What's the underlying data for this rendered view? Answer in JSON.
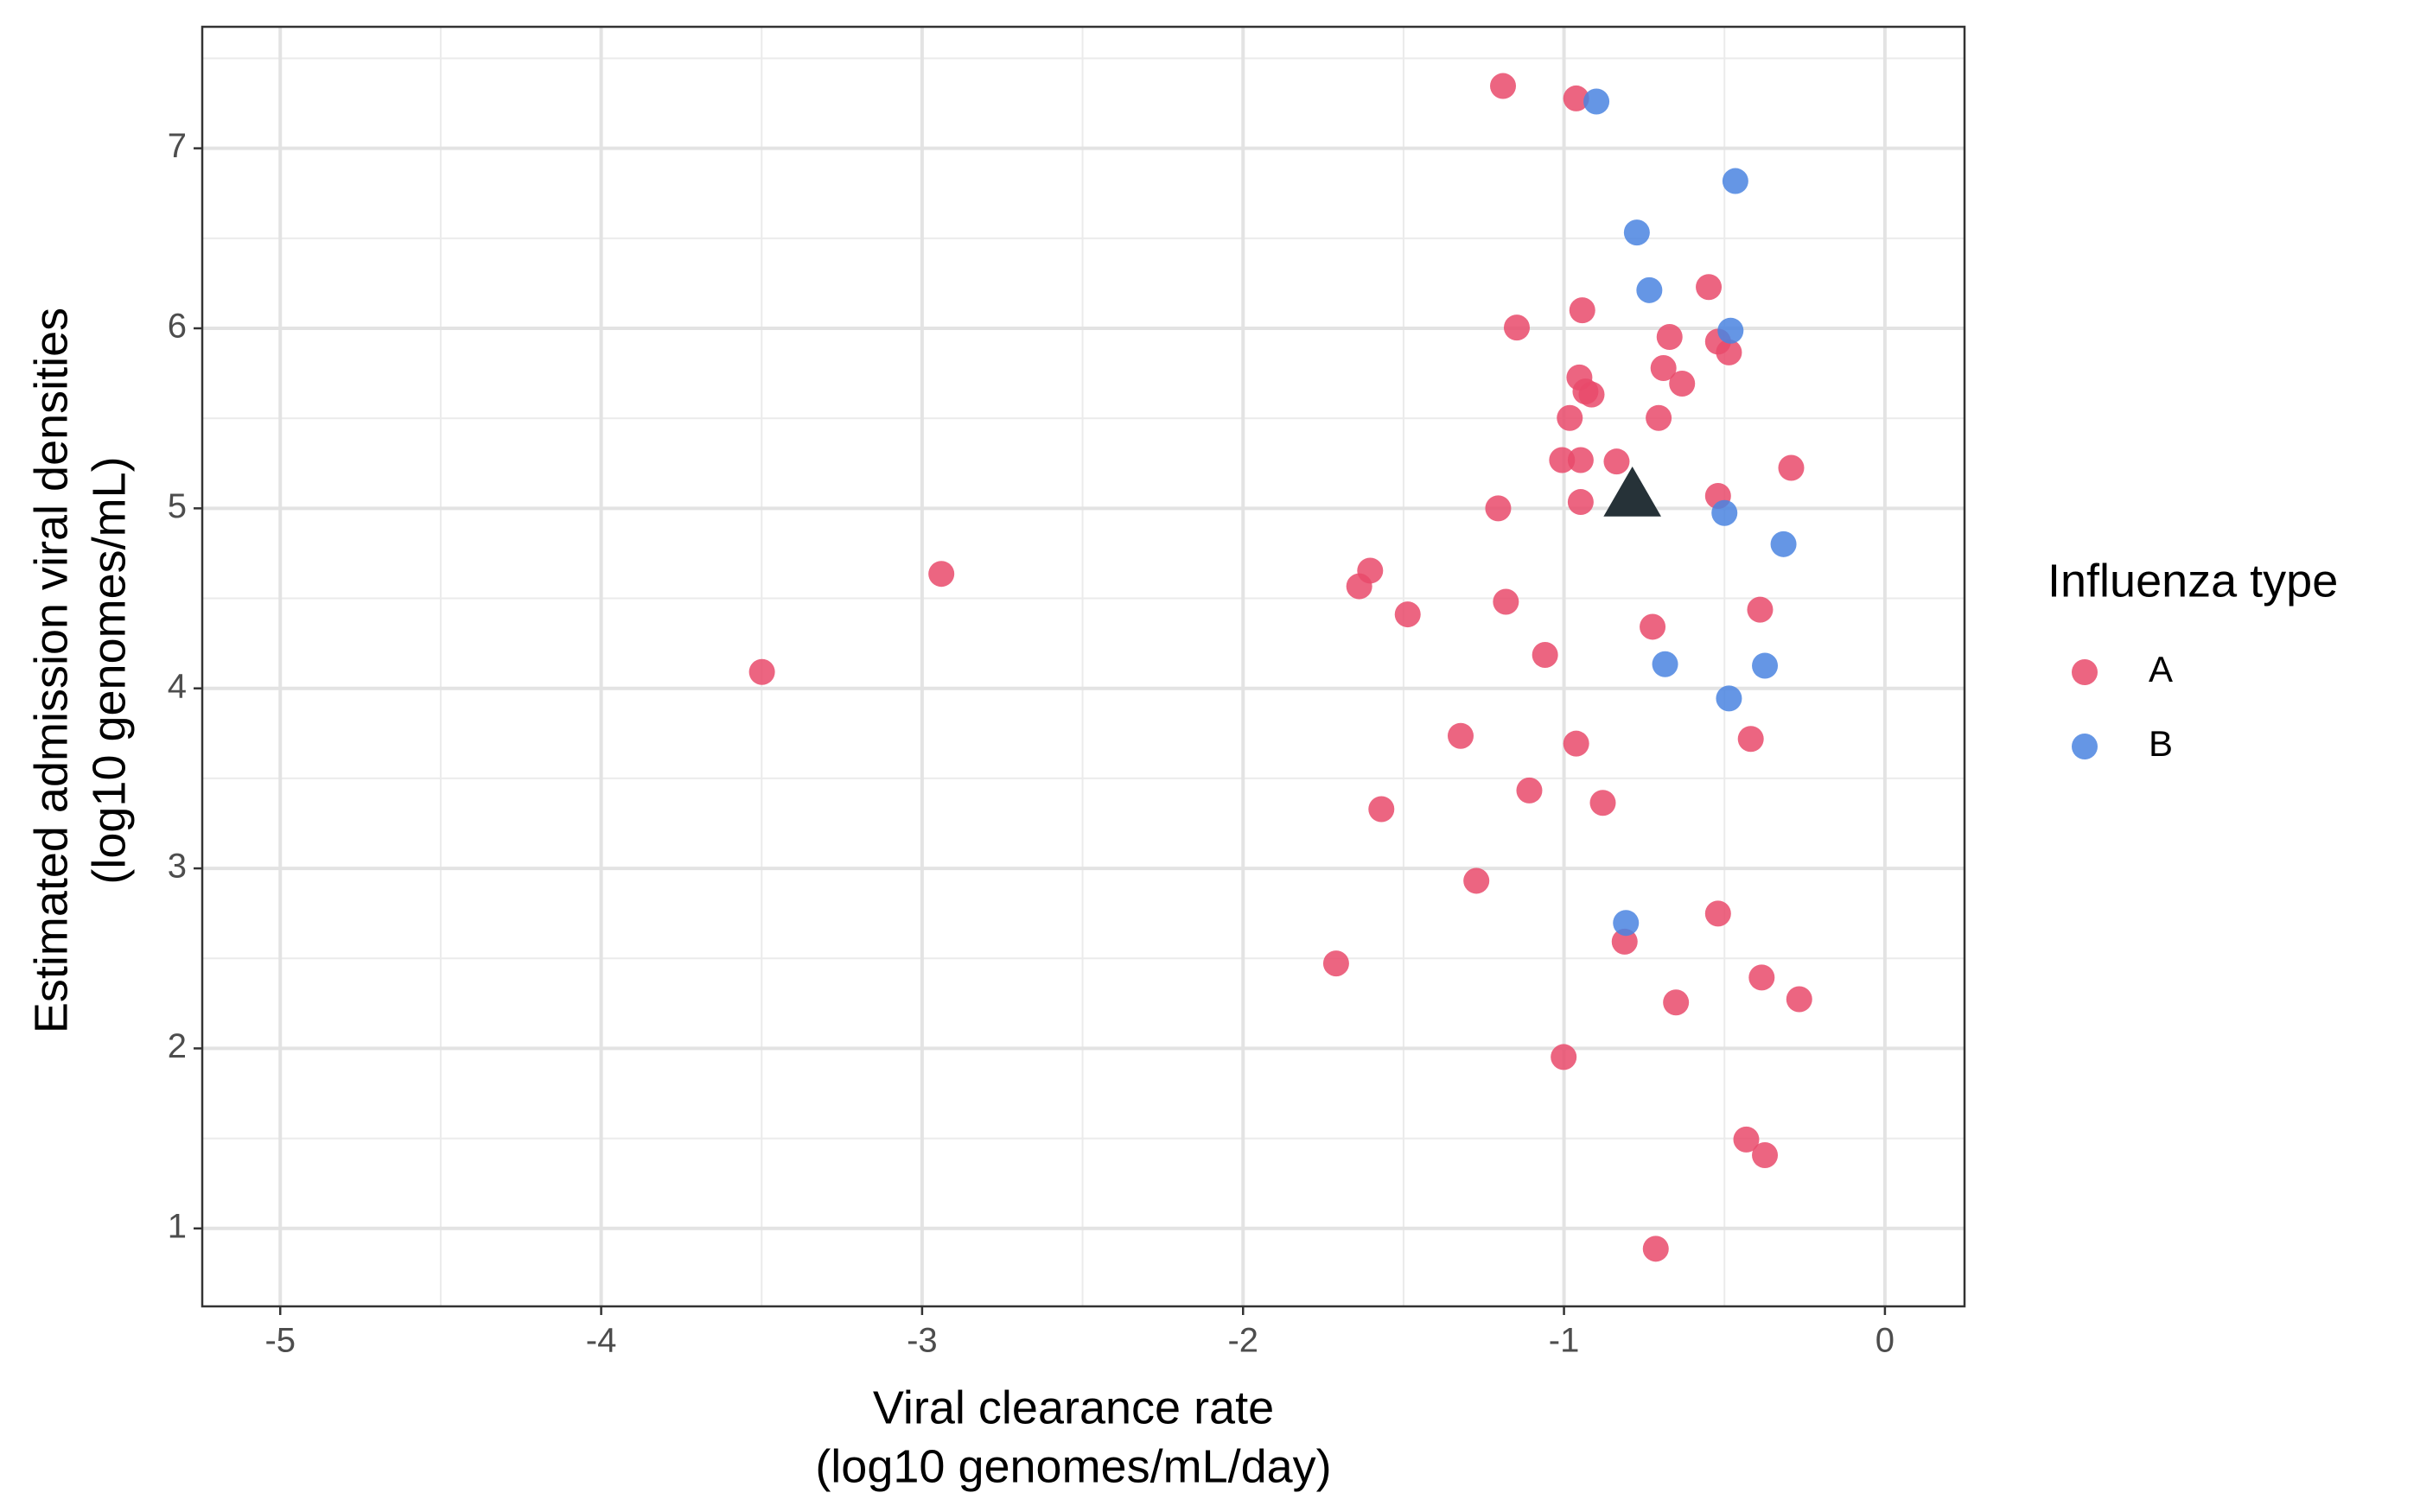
{
  "chart_data": {
    "type": "scatter",
    "x_label": [
      "Viral clearance rate",
      "(log10 genomes/mL/day)"
    ],
    "y_label": [
      "Estimated admission viral densities",
      "(log10 genomes/mL)"
    ],
    "legend_title": "Influenza type",
    "legend": "right",
    "grid": true,
    "xlim": [
      -5.243,
      0.248
    ],
    "ylim": [
      0.567,
      7.675
    ],
    "xticks": [
      -5,
      -4,
      -3,
      -2,
      -1,
      0
    ],
    "yticks": [
      1,
      2,
      3,
      4,
      5,
      6,
      7
    ],
    "xminor": [
      -4.5,
      -3.5,
      -2.5,
      -1.5,
      -0.5
    ],
    "yminor": [
      1.5,
      2.5,
      3.5,
      4.5,
      5.5,
      6.5,
      7.5
    ],
    "series": [
      {
        "name": "A",
        "color": "#e94a6b",
        "x": [
          -1.19,
          -0.962,
          -0.549,
          -0.943,
          -1.147,
          -0.671,
          -0.52,
          -0.486,
          -0.69,
          -0.952,
          -0.632,
          -0.933,
          -0.914,
          -0.982,
          -0.705,
          -1.006,
          -0.948,
          -0.836,
          -0.292,
          -0.52,
          -1.205,
          -0.948,
          -2.94,
          -1.604,
          -1.638,
          -1.181,
          -0.389,
          -1.487,
          -0.724,
          -3.499,
          -1.059,
          -1.322,
          -0.962,
          -0.418,
          -1.108,
          -0.879,
          -1.569,
          -1.273,
          -0.52,
          -0.811,
          -1.71,
          -0.384,
          -0.267,
          -0.651,
          -1.001,
          -0.432,
          -0.374,
          -0.714
        ],
        "values": [
          7.346,
          7.277,
          6.229,
          6.1,
          6.004,
          5.952,
          5.926,
          5.866,
          5.779,
          5.727,
          5.693,
          5.649,
          5.632,
          5.502,
          5.502,
          5.268,
          5.268,
          5.26,
          5.225,
          5.069,
          5.0,
          5.035,
          4.636,
          4.654,
          4.567,
          4.481,
          4.437,
          4.411,
          4.342,
          4.091,
          4.186,
          3.736,
          3.693,
          3.719,
          3.433,
          3.364,
          3.329,
          2.931,
          2.749,
          2.593,
          2.472,
          2.394,
          2.273,
          2.255,
          1.952,
          1.494,
          1.407,
          0.887
        ]
      },
      {
        "name": "B",
        "color": "#4a84e0",
        "x": [
          -0.899,
          -0.466,
          -0.773,
          -0.734,
          -0.481,
          -0.5,
          -0.316,
          -0.685,
          -0.374,
          -0.486,
          -0.807
        ],
        "values": [
          7.26,
          6.818,
          6.532,
          6.212,
          5.987,
          4.974,
          4.801,
          4.134,
          4.126,
          3.944,
          2.697
        ]
      },
      {
        "color": "#263238",
        "marker": "triangle",
        "x": [
          -0.787
        ],
        "values": [
          5.069
        ]
      }
    ]
  }
}
